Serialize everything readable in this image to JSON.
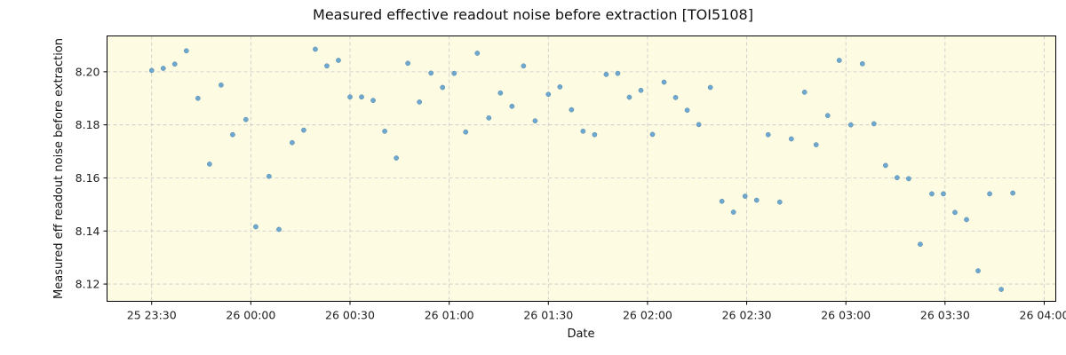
{
  "chart_data": {
    "type": "scatter",
    "title": "Measured effective readout noise before extraction [TOI5108]",
    "xlabel": "Date",
    "ylabel": "Measured eff readout noise before extraction",
    "x_ticks": [
      {
        "label": "25 23:30",
        "minutes": 0
      },
      {
        "label": "26 00:00",
        "minutes": 30
      },
      {
        "label": "26 00:30",
        "minutes": 60
      },
      {
        "label": "26 01:00",
        "minutes": 90
      },
      {
        "label": "26 01:30",
        "minutes": 120
      },
      {
        "label": "26 02:00",
        "minutes": 150
      },
      {
        "label": "26 02:30",
        "minutes": 180
      },
      {
        "label": "26 03:00",
        "minutes": 210
      },
      {
        "label": "26 03:30",
        "minutes": 240
      },
      {
        "label": "26 04:00",
        "minutes": 270
      }
    ],
    "y_ticks": [
      "8.12",
      "8.14",
      "8.16",
      "8.18",
      "8.20"
    ],
    "xlim_minutes": [
      -13.5,
      273.5
    ],
    "ylim": [
      8.1135,
      8.2135
    ],
    "grid": true,
    "colors": {
      "background": "#fdfbe2",
      "point": "#6fa8cf",
      "grid": "#c8c8c8"
    },
    "points": [
      {
        "t": 0.0,
        "y": 8.2005
      },
      {
        "t": 3.5,
        "y": 8.2013
      },
      {
        "t": 7.0,
        "y": 8.2029
      },
      {
        "t": 10.5,
        "y": 8.2079
      },
      {
        "t": 14.0,
        "y": 8.19
      },
      {
        "t": 17.5,
        "y": 8.1652
      },
      {
        "t": 21.0,
        "y": 8.195
      },
      {
        "t": 24.5,
        "y": 8.1763
      },
      {
        "t": 28.5,
        "y": 8.182
      },
      {
        "t": 31.5,
        "y": 8.1416
      },
      {
        "t": 35.5,
        "y": 8.1606
      },
      {
        "t": 38.5,
        "y": 8.1406
      },
      {
        "t": 42.5,
        "y": 8.1733
      },
      {
        "t": 46.0,
        "y": 8.178
      },
      {
        "t": 49.5,
        "y": 8.2085
      },
      {
        "t": 53.0,
        "y": 8.2022
      },
      {
        "t": 56.5,
        "y": 8.2043
      },
      {
        "t": 60.0,
        "y": 8.1905
      },
      {
        "t": 63.5,
        "y": 8.1905
      },
      {
        "t": 67.0,
        "y": 8.1892
      },
      {
        "t": 70.5,
        "y": 8.1776
      },
      {
        "t": 74.0,
        "y": 8.1675
      },
      {
        "t": 77.5,
        "y": 8.2032
      },
      {
        "t": 81.0,
        "y": 8.1886
      },
      {
        "t": 84.5,
        "y": 8.1995
      },
      {
        "t": 88.0,
        "y": 8.1941
      },
      {
        "t": 91.5,
        "y": 8.1994
      },
      {
        "t": 95.0,
        "y": 8.1773
      },
      {
        "t": 98.5,
        "y": 8.207
      },
      {
        "t": 102.0,
        "y": 8.1826
      },
      {
        "t": 105.5,
        "y": 8.192
      },
      {
        "t": 109.0,
        "y": 8.187
      },
      {
        "t": 112.5,
        "y": 8.2022
      },
      {
        "t": 116.0,
        "y": 8.1815
      },
      {
        "t": 120.0,
        "y": 8.1915
      },
      {
        "t": 123.5,
        "y": 8.1943
      },
      {
        "t": 127.0,
        "y": 8.1857
      },
      {
        "t": 130.5,
        "y": 8.1776
      },
      {
        "t": 134.0,
        "y": 8.1763
      },
      {
        "t": 137.5,
        "y": 8.199
      },
      {
        "t": 141.0,
        "y": 8.1994
      },
      {
        "t": 144.5,
        "y": 8.1904
      },
      {
        "t": 148.0,
        "y": 8.193
      },
      {
        "t": 151.5,
        "y": 8.1764
      },
      {
        "t": 155.0,
        "y": 8.1961
      },
      {
        "t": 158.5,
        "y": 8.1903
      },
      {
        "t": 162.0,
        "y": 8.1855
      },
      {
        "t": 165.5,
        "y": 8.1801
      },
      {
        "t": 169.0,
        "y": 8.1941
      },
      {
        "t": 172.5,
        "y": 8.1512
      },
      {
        "t": 176.0,
        "y": 8.1471
      },
      {
        "t": 179.5,
        "y": 8.1531
      },
      {
        "t": 183.0,
        "y": 8.1516
      },
      {
        "t": 186.5,
        "y": 8.1763
      },
      {
        "t": 190.0,
        "y": 8.1509
      },
      {
        "t": 193.5,
        "y": 8.1747
      },
      {
        "t": 197.5,
        "y": 8.1923
      },
      {
        "t": 201.0,
        "y": 8.1725
      },
      {
        "t": 204.5,
        "y": 8.1835
      },
      {
        "t": 208.0,
        "y": 8.2043
      },
      {
        "t": 211.5,
        "y": 8.18
      },
      {
        "t": 215.0,
        "y": 8.203
      },
      {
        "t": 218.5,
        "y": 8.1804
      },
      {
        "t": 222.0,
        "y": 8.1647
      },
      {
        "t": 225.5,
        "y": 8.1601
      },
      {
        "t": 229.0,
        "y": 8.1597
      },
      {
        "t": 232.5,
        "y": 8.135
      },
      {
        "t": 236.0,
        "y": 8.154
      },
      {
        "t": 239.5,
        "y": 8.154
      },
      {
        "t": 243.0,
        "y": 8.147
      },
      {
        "t": 246.5,
        "y": 8.1443
      },
      {
        "t": 250.0,
        "y": 8.125
      },
      {
        "t": 253.5,
        "y": 8.154
      },
      {
        "t": 257.0,
        "y": 8.118
      },
      {
        "t": 260.5,
        "y": 8.1543
      }
    ]
  }
}
